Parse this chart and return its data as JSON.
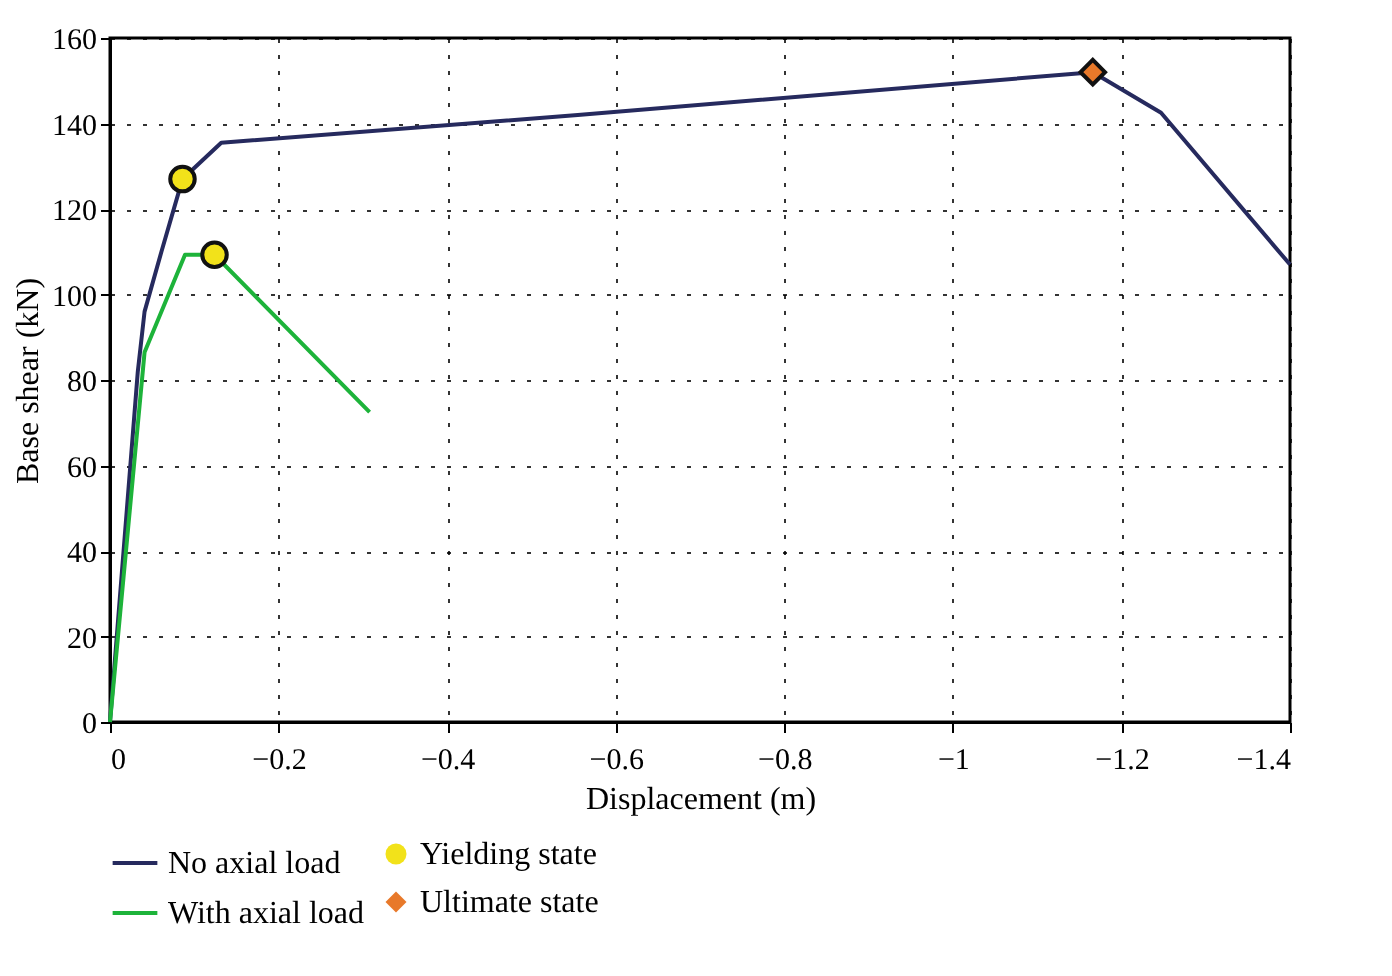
{
  "chart_data": {
    "type": "line",
    "xlabel": "Displacement (m)",
    "ylabel": "Base shear (kN)",
    "series": [
      {
        "name": "No axial load",
        "color": "#262a5e",
        "x": [
          0,
          -0.033,
          -0.041,
          -0.061,
          -0.086,
          -0.132,
          -0.555,
          -1.166,
          -1.247,
          -1.4
        ],
        "values": [
          0,
          82,
          96,
          110,
          127,
          135.5,
          142,
          152,
          142.5,
          107
        ]
      },
      {
        "name": "With axial load",
        "color": "#1db33a",
        "x": [
          0,
          -0.041,
          -0.089,
          -0.124,
          -0.308
        ],
        "values": [
          0,
          86.5,
          109.3,
          109.3,
          72.5
        ]
      },
      {
        "name": "Yielding state",
        "type": "scatter",
        "marker": "circle",
        "color": "#f2e21a",
        "x": [
          -0.086,
          -0.124
        ],
        "values": [
          127,
          109.3
        ]
      },
      {
        "name": "Ultimate state",
        "type": "scatter",
        "marker": "diamond",
        "color": "#e8792a",
        "x": [
          -1.166
        ],
        "values": [
          152
        ]
      }
    ],
    "xlim": [
      0,
      -1.4
    ],
    "xticks": [
      0,
      {
        "value": -0.2,
        "label": "−0.2"
      },
      {
        "value": -0.4,
        "label": "−0.4"
      },
      {
        "value": -0.6,
        "label": "−0.6"
      },
      {
        "value": -0.8,
        "label": "−0.8"
      },
      {
        "value": -1,
        "label": "−1"
      },
      {
        "value": -1.2,
        "label": "−1.2"
      },
      {
        "value": -1.4,
        "label": "−1.4"
      }
    ],
    "ylim": [
      0,
      160
    ],
    "yticks": [
      0,
      20,
      40,
      60,
      80,
      100,
      120,
      140,
      160
    ],
    "grid": true,
    "legend": "bottom",
    "line_style": "solid"
  }
}
